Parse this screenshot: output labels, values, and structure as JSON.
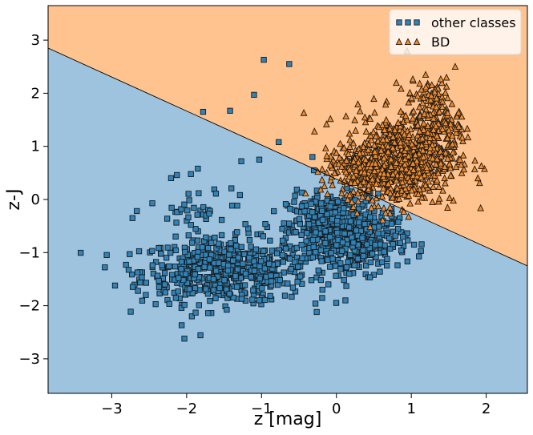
{
  "chart_data": {
    "type": "scatter",
    "title": "",
    "xlabel": "z [mag]",
    "ylabel": "z-J",
    "xlim": [
      -3.85,
      2.55
    ],
    "ylim": [
      -3.65,
      3.65
    ],
    "x_ticks": [
      -3,
      -2,
      -1,
      0,
      1,
      2
    ],
    "y_ticks": [
      -3,
      -2,
      -1,
      0,
      1,
      2,
      3
    ],
    "x_tick_labels": [
      "−3",
      "−2",
      "−1",
      "0",
      "1",
      "2"
    ],
    "y_tick_labels": [
      "−3",
      "−2",
      "−1",
      "0",
      "1",
      "2",
      "3"
    ],
    "decision_boundary": {
      "x": [
        -3.85,
        2.55
      ],
      "y": [
        2.85,
        -1.25
      ],
      "region_above": "BD",
      "region_below": "other classes"
    },
    "legend_position": "top-right",
    "colors": {
      "other_region": "#9dc3df",
      "bd_region": "#ffc38f",
      "other_marker": "#2f83b8",
      "bd_marker": "#f28a2a",
      "boundary": "#000000"
    },
    "series": [
      {
        "name": "other classes",
        "marker": "square",
        "clusters": [
          {
            "cx": -1.5,
            "cy": -1.35,
            "sx": 0.55,
            "sy": 0.3,
            "n": 560
          },
          {
            "cx": -0.05,
            "cy": -0.6,
            "sx": 0.3,
            "sy": 0.35,
            "n": 520
          },
          {
            "cx": 0.45,
            "cy": -0.75,
            "sx": 0.25,
            "sy": 0.3,
            "n": 160
          },
          {
            "cx": -1.8,
            "cy": -0.2,
            "sx": 0.35,
            "sy": 0.25,
            "n": 40
          }
        ],
        "points": [
          {
            "x": -0.97,
            "y": 2.63
          },
          {
            "x": -0.63,
            "y": 2.55
          },
          {
            "x": -1.1,
            "y": 1.97
          },
          {
            "x": -1.42,
            "y": 1.67
          },
          {
            "x": -1.78,
            "y": 1.65
          },
          {
            "x": -0.77,
            "y": 1.08
          },
          {
            "x": -2.03,
            "y": -2.62
          },
          {
            "x": -2.81,
            "y": -1.23
          },
          {
            "x": -2.13,
            "y": 0.46
          },
          {
            "x": -1.85,
            "y": 0.58
          },
          {
            "x": -1.27,
            "y": 0.72
          },
          {
            "x": -1.03,
            "y": 0.75
          },
          {
            "x": -0.28,
            "y": -1.96
          },
          {
            "x": -2.65,
            "y": -1.72
          },
          {
            "x": -1.93,
            "y": -2.2
          },
          {
            "x": -1.88,
            "y": -2.13
          },
          {
            "x": 0.12,
            "y": -1.9
          },
          {
            "x": -0.52,
            "y": -1.55
          },
          {
            "x": 0.65,
            "y": 1.18
          },
          {
            "x": -0.3,
            "y": 0.55
          },
          {
            "x": -0.32,
            "y": 0.8
          }
        ]
      },
      {
        "name": "BD",
        "marker": "triangle",
        "clusters": [
          {
            "cx": 0.85,
            "cy": 0.75,
            "sx": 0.38,
            "sy": 0.42,
            "n": 700
          },
          {
            "cx": 1.3,
            "cy": 1.55,
            "sx": 0.18,
            "sy": 0.35,
            "n": 160
          },
          {
            "cx": 0.25,
            "cy": 0.55,
            "sx": 0.22,
            "sy": 0.2,
            "n": 120
          }
        ],
        "points": [
          {
            "x": 0.8,
            "y": 2.2
          },
          {
            "x": 1.47,
            "y": 2.3
          },
          {
            "x": 0.0,
            "y": 0.88
          },
          {
            "x": 0.38,
            "y": 1.55
          },
          {
            "x": 0.5,
            "y": 1.9
          },
          {
            "x": 1.02,
            "y": 2.27
          }
        ]
      }
    ],
    "legend": [
      "other classes",
      "BD"
    ]
  }
}
